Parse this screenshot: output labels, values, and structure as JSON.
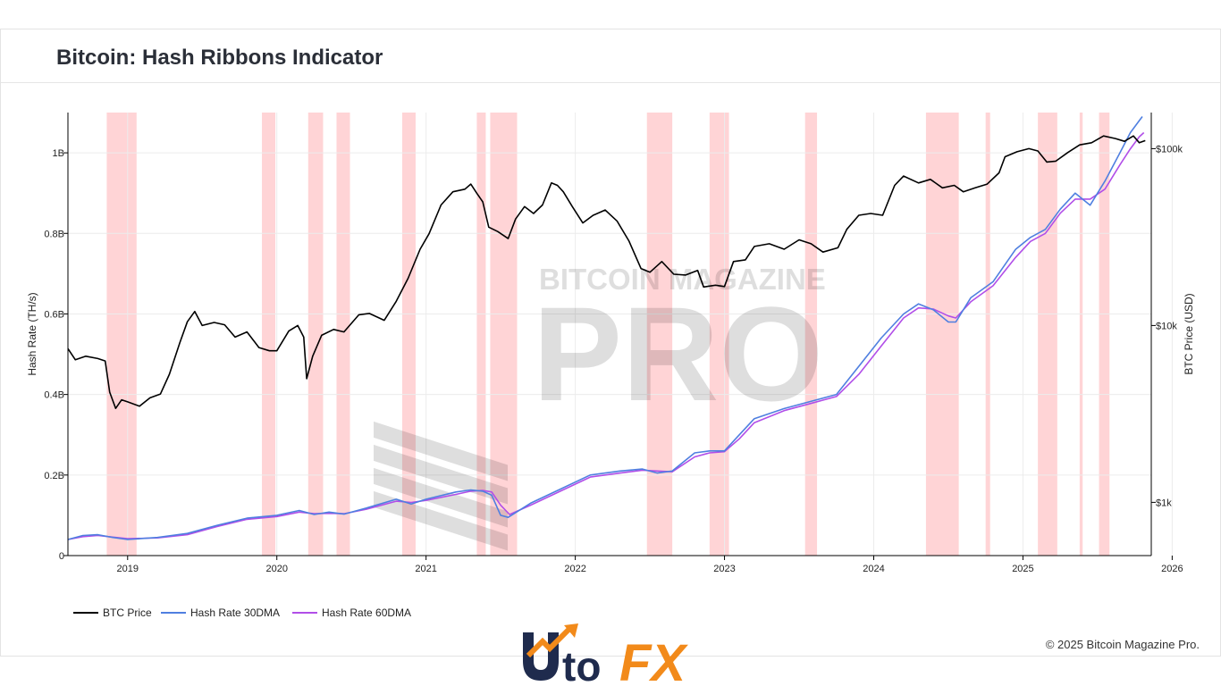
{
  "page": {
    "title": "Bitcoin: Hash Ribbons Indicator",
    "copyright": "© 2025 Bitcoin Magazine Pro."
  },
  "watermark": {
    "line1": "BITCOIN MAGAZINE",
    "line2": "PRO"
  },
  "logo": {
    "text_a": "Uto",
    "text_b": "FX"
  },
  "colors": {
    "btc": "#000000",
    "hr30": "#4f7fe0",
    "hr60": "#b14ee8",
    "band": "#ffc9cc",
    "band_light": "#ffe0e2"
  },
  "chart_data": {
    "type": "line",
    "title": "Bitcoin: Hash Ribbons Indicator",
    "xlabel": "",
    "ylabel_left": "Hash Rate (TH/s)",
    "ylabel_right": "BTC Price (USD)",
    "x_range": [
      2018.6,
      2025.86
    ],
    "y_left_range": [
      0,
      1.1
    ],
    "y_left_unit": "billion TH/s",
    "y_left_ticks": [
      {
        "v": 0,
        "label": "0"
      },
      {
        "v": 0.2,
        "label": "0.2B"
      },
      {
        "v": 0.4,
        "label": "0.4B"
      },
      {
        "v": 0.6,
        "label": "0.6B"
      },
      {
        "v": 0.8,
        "label": "0.8B"
      },
      {
        "v": 1.0,
        "label": "1B"
      }
    ],
    "y_right_scale": "log",
    "y_right_range": [
      500,
      160000
    ],
    "y_right_ticks": [
      {
        "v": 1000,
        "label": "$1k"
      },
      {
        "v": 10000,
        "label": "$10k"
      },
      {
        "v": 100000,
        "label": "$100k"
      }
    ],
    "x_ticks": [
      {
        "v": 2019,
        "label": "2019"
      },
      {
        "v": 2020,
        "label": "2020"
      },
      {
        "v": 2021,
        "label": "2021"
      },
      {
        "v": 2022,
        "label": "2022"
      },
      {
        "v": 2023,
        "label": "2023"
      },
      {
        "v": 2024,
        "label": "2024"
      },
      {
        "v": 2025,
        "label": "2025"
      },
      {
        "v": 2026,
        "label": "2026"
      }
    ],
    "legend_position": "bottom-left",
    "grid": true,
    "capitulation_bands": [
      [
        2018.86,
        2019.06
      ],
      [
        2019.9,
        2019.99
      ],
      [
        2020.21,
        2020.31
      ],
      [
        2020.4,
        2020.49
      ],
      [
        2020.84,
        2020.93
      ],
      [
        2021.34,
        2021.4
      ],
      [
        2021.43,
        2021.61
      ],
      [
        2022.48,
        2022.65
      ],
      [
        2022.9,
        2023.03
      ],
      [
        2023.54,
        2023.62
      ],
      [
        2024.35,
        2024.57
      ],
      [
        2024.75,
        2024.78
      ],
      [
        2025.1,
        2025.23
      ],
      [
        2025.38,
        2025.4
      ],
      [
        2025.51,
        2025.58
      ]
    ],
    "series": [
      {
        "name": "BTC Price",
        "axis": "right",
        "points": [
          [
            2018.6,
            7400
          ],
          [
            2018.65,
            6400
          ],
          [
            2018.72,
            6700
          ],
          [
            2018.8,
            6500
          ],
          [
            2018.85,
            6300
          ],
          [
            2018.88,
            4200
          ],
          [
            2018.92,
            3400
          ],
          [
            2018.96,
            3800
          ],
          [
            2019.0,
            3700
          ],
          [
            2019.08,
            3500
          ],
          [
            2019.15,
            3900
          ],
          [
            2019.22,
            4100
          ],
          [
            2019.28,
            5300
          ],
          [
            2019.35,
            8000
          ],
          [
            2019.4,
            10500
          ],
          [
            2019.45,
            12000
          ],
          [
            2019.5,
            10000
          ],
          [
            2019.58,
            10400
          ],
          [
            2019.65,
            10100
          ],
          [
            2019.72,
            8600
          ],
          [
            2019.8,
            9200
          ],
          [
            2019.88,
            7500
          ],
          [
            2019.95,
            7200
          ],
          [
            2020.0,
            7200
          ],
          [
            2020.08,
            9300
          ],
          [
            2020.14,
            10000
          ],
          [
            2020.18,
            8600
          ],
          [
            2020.2,
            5000
          ],
          [
            2020.24,
            6700
          ],
          [
            2020.3,
            8800
          ],
          [
            2020.38,
            9500
          ],
          [
            2020.45,
            9200
          ],
          [
            2020.55,
            11500
          ],
          [
            2020.62,
            11700
          ],
          [
            2020.72,
            10700
          ],
          [
            2020.8,
            13700
          ],
          [
            2020.88,
            18500
          ],
          [
            2020.96,
            27000
          ],
          [
            2021.02,
            33000
          ],
          [
            2021.1,
            48000
          ],
          [
            2021.18,
            57000
          ],
          [
            2021.26,
            59000
          ],
          [
            2021.3,
            63000
          ],
          [
            2021.34,
            56000
          ],
          [
            2021.38,
            50000
          ],
          [
            2021.42,
            36000
          ],
          [
            2021.48,
            34000
          ],
          [
            2021.55,
            31000
          ],
          [
            2021.6,
            40000
          ],
          [
            2021.66,
            47000
          ],
          [
            2021.72,
            43000
          ],
          [
            2021.78,
            48000
          ],
          [
            2021.84,
            64000
          ],
          [
            2021.88,
            62000
          ],
          [
            2021.92,
            57000
          ],
          [
            2021.98,
            47000
          ],
          [
            2022.05,
            38000
          ],
          [
            2022.12,
            42000
          ],
          [
            2022.2,
            45000
          ],
          [
            2022.28,
            39000
          ],
          [
            2022.36,
            30000
          ],
          [
            2022.44,
            21000
          ],
          [
            2022.5,
            20000
          ],
          [
            2022.58,
            23000
          ],
          [
            2022.66,
            19500
          ],
          [
            2022.74,
            19300
          ],
          [
            2022.82,
            20500
          ],
          [
            2022.86,
            16500
          ],
          [
            2022.94,
            16900
          ],
          [
            2023.0,
            16600
          ],
          [
            2023.06,
            23000
          ],
          [
            2023.14,
            23500
          ],
          [
            2023.2,
            28000
          ],
          [
            2023.3,
            29000
          ],
          [
            2023.4,
            27000
          ],
          [
            2023.5,
            30500
          ],
          [
            2023.58,
            29000
          ],
          [
            2023.66,
            26000
          ],
          [
            2023.76,
            27500
          ],
          [
            2023.82,
            35000
          ],
          [
            2023.9,
            42000
          ],
          [
            2023.98,
            43000
          ],
          [
            2024.06,
            42000
          ],
          [
            2024.14,
            62000
          ],
          [
            2024.2,
            70000
          ],
          [
            2024.3,
            64000
          ],
          [
            2024.38,
            67000
          ],
          [
            2024.46,
            60000
          ],
          [
            2024.54,
            62000
          ],
          [
            2024.6,
            57000
          ],
          [
            2024.68,
            60000
          ],
          [
            2024.76,
            63000
          ],
          [
            2024.84,
            73000
          ],
          [
            2024.88,
            90000
          ],
          [
            2024.96,
            96000
          ],
          [
            2025.04,
            100000
          ],
          [
            2025.1,
            97000
          ],
          [
            2025.16,
            84000
          ],
          [
            2025.22,
            85000
          ],
          [
            2025.3,
            95000
          ],
          [
            2025.38,
            105000
          ],
          [
            2025.46,
            108000
          ],
          [
            2025.54,
            118000
          ],
          [
            2025.62,
            114000
          ],
          [
            2025.68,
            110000
          ],
          [
            2025.74,
            118000
          ],
          [
            2025.78,
            108000
          ],
          [
            2025.82,
            111000
          ]
        ]
      },
      {
        "name": "Hash Rate 30DMA",
        "axis": "left",
        "points": [
          [
            2018.6,
            0.04
          ],
          [
            2018.7,
            0.05
          ],
          [
            2018.8,
            0.052
          ],
          [
            2018.9,
            0.045
          ],
          [
            2019.0,
            0.04
          ],
          [
            2019.2,
            0.045
          ],
          [
            2019.4,
            0.055
          ],
          [
            2019.6,
            0.075
          ],
          [
            2019.8,
            0.093
          ],
          [
            2020.0,
            0.1
          ],
          [
            2020.15,
            0.112
          ],
          [
            2020.25,
            0.102
          ],
          [
            2020.35,
            0.108
          ],
          [
            2020.45,
            0.103
          ],
          [
            2020.6,
            0.118
          ],
          [
            2020.8,
            0.14
          ],
          [
            2020.9,
            0.128
          ],
          [
            2021.0,
            0.14
          ],
          [
            2021.2,
            0.158
          ],
          [
            2021.3,
            0.163
          ],
          [
            2021.38,
            0.16
          ],
          [
            2021.44,
            0.15
          ],
          [
            2021.5,
            0.1
          ],
          [
            2021.55,
            0.095
          ],
          [
            2021.7,
            0.13
          ],
          [
            2021.9,
            0.165
          ],
          [
            2022.1,
            0.2
          ],
          [
            2022.3,
            0.21
          ],
          [
            2022.45,
            0.215
          ],
          [
            2022.55,
            0.205
          ],
          [
            2022.65,
            0.21
          ],
          [
            2022.8,
            0.255
          ],
          [
            2022.9,
            0.26
          ],
          [
            2023.0,
            0.26
          ],
          [
            2023.1,
            0.3
          ],
          [
            2023.2,
            0.34
          ],
          [
            2023.4,
            0.365
          ],
          [
            2023.6,
            0.385
          ],
          [
            2023.75,
            0.4
          ],
          [
            2023.9,
            0.47
          ],
          [
            2024.05,
            0.54
          ],
          [
            2024.2,
            0.6
          ],
          [
            2024.3,
            0.625
          ],
          [
            2024.4,
            0.61
          ],
          [
            2024.5,
            0.58
          ],
          [
            2024.55,
            0.58
          ],
          [
            2024.65,
            0.64
          ],
          [
            2024.8,
            0.68
          ],
          [
            2024.95,
            0.76
          ],
          [
            2025.05,
            0.79
          ],
          [
            2025.15,
            0.81
          ],
          [
            2025.25,
            0.86
          ],
          [
            2025.35,
            0.9
          ],
          [
            2025.45,
            0.87
          ],
          [
            2025.55,
            0.93
          ],
          [
            2025.65,
            1.0
          ],
          [
            2025.72,
            1.05
          ],
          [
            2025.78,
            1.08
          ],
          [
            2025.8,
            1.09
          ]
        ]
      },
      {
        "name": "Hash Rate 60DMA",
        "axis": "left",
        "points": [
          [
            2018.6,
            0.04
          ],
          [
            2018.7,
            0.047
          ],
          [
            2018.8,
            0.05
          ],
          [
            2018.9,
            0.046
          ],
          [
            2019.0,
            0.042
          ],
          [
            2019.2,
            0.044
          ],
          [
            2019.4,
            0.052
          ],
          [
            2019.6,
            0.072
          ],
          [
            2019.8,
            0.09
          ],
          [
            2020.0,
            0.097
          ],
          [
            2020.15,
            0.108
          ],
          [
            2020.25,
            0.104
          ],
          [
            2020.35,
            0.105
          ],
          [
            2020.45,
            0.104
          ],
          [
            2020.6,
            0.115
          ],
          [
            2020.8,
            0.135
          ],
          [
            2020.9,
            0.132
          ],
          [
            2021.0,
            0.137
          ],
          [
            2021.2,
            0.152
          ],
          [
            2021.3,
            0.16
          ],
          [
            2021.38,
            0.162
          ],
          [
            2021.44,
            0.158
          ],
          [
            2021.5,
            0.125
          ],
          [
            2021.56,
            0.102
          ],
          [
            2021.7,
            0.125
          ],
          [
            2021.9,
            0.16
          ],
          [
            2022.1,
            0.195
          ],
          [
            2022.3,
            0.205
          ],
          [
            2022.45,
            0.212
          ],
          [
            2022.55,
            0.21
          ],
          [
            2022.65,
            0.208
          ],
          [
            2022.8,
            0.245
          ],
          [
            2022.9,
            0.255
          ],
          [
            2023.0,
            0.258
          ],
          [
            2023.1,
            0.29
          ],
          [
            2023.2,
            0.33
          ],
          [
            2023.4,
            0.36
          ],
          [
            2023.6,
            0.38
          ],
          [
            2023.75,
            0.395
          ],
          [
            2023.9,
            0.45
          ],
          [
            2024.05,
            0.52
          ],
          [
            2024.2,
            0.59
          ],
          [
            2024.3,
            0.615
          ],
          [
            2024.4,
            0.612
          ],
          [
            2024.5,
            0.595
          ],
          [
            2024.55,
            0.59
          ],
          [
            2024.65,
            0.63
          ],
          [
            2024.8,
            0.67
          ],
          [
            2024.95,
            0.74
          ],
          [
            2025.05,
            0.78
          ],
          [
            2025.15,
            0.8
          ],
          [
            2025.25,
            0.85
          ],
          [
            2025.35,
            0.885
          ],
          [
            2025.45,
            0.885
          ],
          [
            2025.55,
            0.91
          ],
          [
            2025.65,
            0.97
          ],
          [
            2025.72,
            1.01
          ],
          [
            2025.78,
            1.04
          ],
          [
            2025.81,
            1.05
          ]
        ]
      }
    ]
  }
}
